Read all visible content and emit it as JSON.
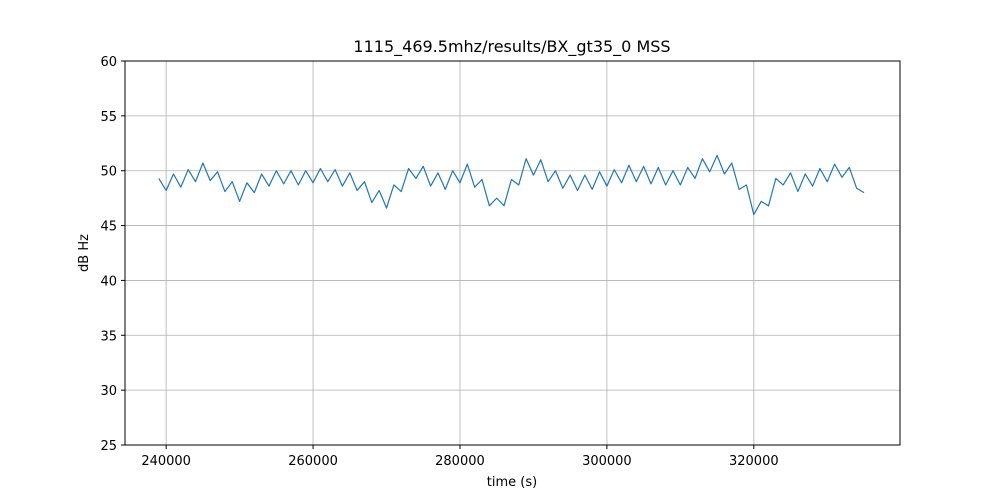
{
  "chart_data": {
    "type": "line",
    "title": "1115_469.5mhz/results/BX_gt35_0 MSS",
    "xlabel": "time (s)",
    "ylabel": "dB Hz",
    "xlim": [
      234400,
      339900
    ],
    "ylim": [
      25,
      60
    ],
    "xticks": [
      240000,
      260000,
      280000,
      300000,
      320000
    ],
    "yticks": [
      25,
      30,
      35,
      40,
      45,
      50,
      55,
      60
    ],
    "grid": true,
    "color": "#1f77b4",
    "x": [
      239000,
      240000,
      241000,
      242000,
      243000,
      244000,
      245000,
      246000,
      247000,
      248000,
      249000,
      250000,
      251000,
      252000,
      253000,
      254000,
      255000,
      256000,
      257000,
      258000,
      259000,
      260000,
      261000,
      262000,
      263000,
      264000,
      265000,
      266000,
      267000,
      268000,
      269000,
      270000,
      271000,
      272000,
      273000,
      274000,
      275000,
      276000,
      277000,
      278000,
      279000,
      280000,
      281000,
      282000,
      283000,
      284000,
      285000,
      286000,
      287000,
      288000,
      289000,
      290000,
      291000,
      292000,
      293000,
      294000,
      295000,
      296000,
      297000,
      298000,
      299000,
      300000,
      301000,
      302000,
      303000,
      304000,
      305000,
      306000,
      307000,
      308000,
      309000,
      310000,
      311000,
      312000,
      313000,
      314000,
      315000,
      316000,
      317000,
      318000,
      319000,
      320000,
      321000,
      322000,
      323000,
      324000,
      325000,
      326000,
      327000,
      328000,
      329000,
      330000,
      331000,
      332000,
      333000,
      334000,
      335000
    ],
    "values": [
      49.3,
      48.2,
      49.7,
      48.5,
      50.1,
      49.0,
      50.7,
      49.1,
      49.9,
      48.1,
      49.0,
      47.2,
      48.9,
      48.0,
      49.7,
      48.6,
      50.0,
      48.8,
      50.0,
      48.7,
      50.0,
      48.9,
      50.2,
      49.0,
      50.1,
      48.6,
      49.8,
      48.2,
      49.0,
      47.1,
      48.2,
      46.6,
      48.7,
      48.1,
      50.2,
      49.3,
      50.4,
      48.6,
      49.8,
      48.3,
      50.0,
      48.9,
      50.6,
      48.5,
      49.2,
      46.8,
      47.5,
      46.8,
      49.2,
      48.7,
      51.1,
      49.6,
      51.0,
      49.0,
      50.0,
      48.4,
      49.6,
      48.2,
      49.6,
      48.3,
      49.9,
      48.6,
      50.1,
      48.9,
      50.5,
      49.0,
      50.4,
      48.8,
      50.3,
      48.7,
      50.0,
      48.7,
      50.3,
      49.3,
      51.1,
      49.9,
      51.4,
      49.7,
      50.7,
      48.3,
      48.7,
      46.0,
      47.2,
      46.8,
      49.3,
      48.7,
      49.8,
      48.1,
      49.7,
      48.6,
      50.2,
      49.0,
      50.6,
      49.4,
      50.3,
      48.4,
      48.0
    ]
  }
}
